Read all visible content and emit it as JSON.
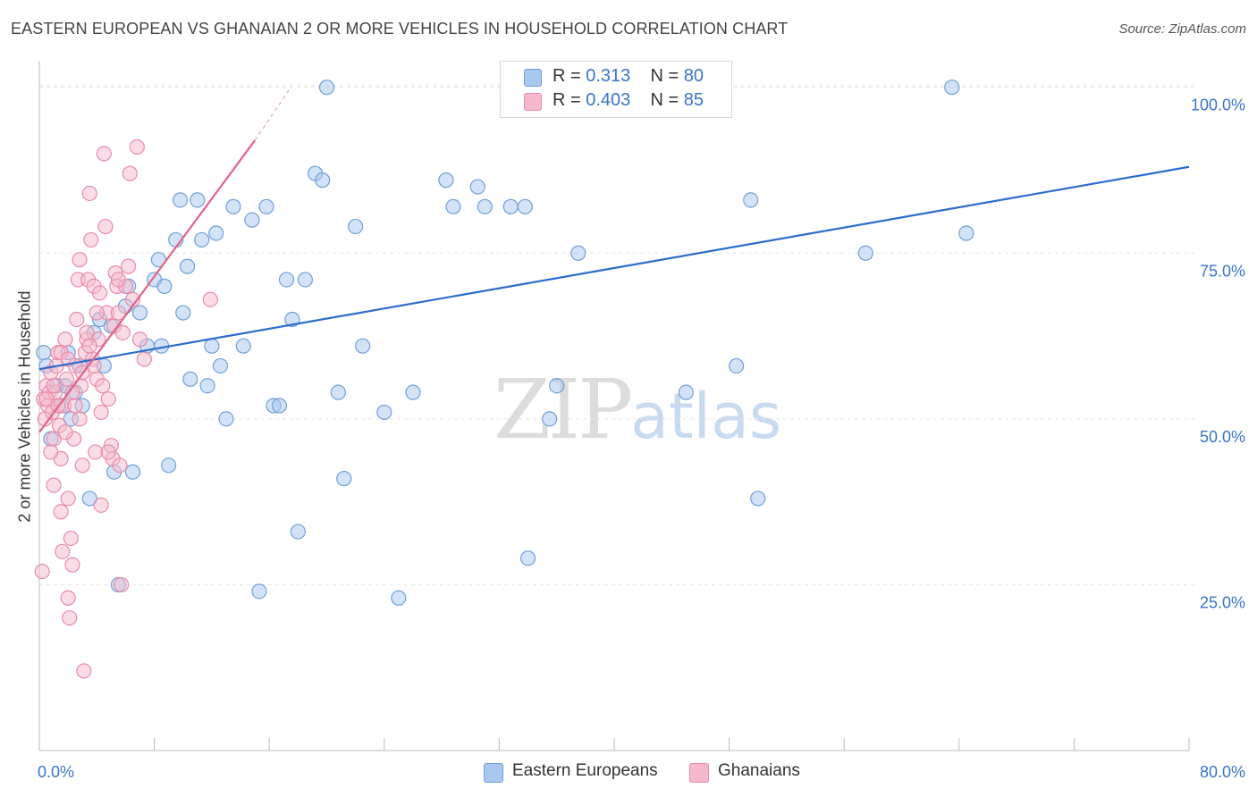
{
  "title": "EASTERN EUROPEAN VS GHANAIAN 2 OR MORE VEHICLES IN HOUSEHOLD CORRELATION CHART",
  "source": "Source: ZipAtlas.com",
  "watermark": {
    "zip": "ZIP",
    "atlas": "atlas"
  },
  "legend_top": [
    {
      "r_label": "R =",
      "r_value": "0.313",
      "n_label": "N =",
      "n_value": "80",
      "color": "#a8c8f0"
    },
    {
      "r_label": "R =",
      "r_value": "0.403",
      "n_label": "N =",
      "n_value": "85",
      "color": "#f6b9cc"
    }
  ],
  "legend_bottom": [
    {
      "label": "Eastern Europeans",
      "color": "#a8c8f0"
    },
    {
      "label": "Ghanaians",
      "color": "#f6b9cc"
    }
  ],
  "chart_data": {
    "type": "scatter",
    "title": "EASTERN EUROPEAN VS GHANAIAN 2 OR MORE VEHICLES IN HOUSEHOLD CORRELATION CHART",
    "xlabel": "",
    "ylabel": "2 or more Vehicles in Household",
    "xlim": [
      0,
      80
    ],
    "ylim": [
      0,
      104
    ],
    "x_tick_labels": [
      "0.0%",
      "80.0%"
    ],
    "y_ticks": [
      25,
      50,
      75,
      100
    ],
    "y_tick_labels": [
      "25.0%",
      "50.0%",
      "75.0%",
      "100.0%"
    ],
    "grid": true,
    "legend_position": "top-center",
    "series": [
      {
        "name": "Eastern Europeans",
        "color": "#a8c8f0",
        "stroke": "#6f9fd8",
        "trend_color": "#2a6ccc",
        "trend": {
          "x": [
            0,
            80
          ],
          "y": [
            57.5,
            88.0
          ]
        },
        "points": [
          [
            0.3,
            60
          ],
          [
            0.5,
            58
          ],
          [
            0.8,
            47
          ],
          [
            1.2,
            55
          ],
          [
            1.5,
            52
          ],
          [
            1.8,
            55
          ],
          [
            2.2,
            50
          ],
          [
            2.5,
            54
          ],
          [
            2.8,
            58
          ],
          [
            3.0,
            52
          ],
          [
            3.8,
            63
          ],
          [
            4.2,
            65
          ],
          [
            4.5,
            58
          ],
          [
            5.2,
            42
          ],
          [
            5.5,
            25
          ],
          [
            6.0,
            67
          ],
          [
            6.2,
            70
          ],
          [
            6.5,
            42
          ],
          [
            7.0,
            66
          ],
          [
            7.5,
            61
          ],
          [
            8.0,
            71
          ],
          [
            8.3,
            74
          ],
          [
            8.7,
            70
          ],
          [
            9.0,
            43
          ],
          [
            9.5,
            77
          ],
          [
            9.8,
            83
          ],
          [
            10.0,
            66
          ],
          [
            10.3,
            73
          ],
          [
            10.5,
            56
          ],
          [
            11.0,
            83
          ],
          [
            11.3,
            77
          ],
          [
            11.7,
            55
          ],
          [
            12.0,
            61
          ],
          [
            12.3,
            78
          ],
          [
            12.6,
            58
          ],
          [
            13.0,
            50
          ],
          [
            13.5,
            82
          ],
          [
            14.2,
            61
          ],
          [
            14.8,
            80
          ],
          [
            15.3,
            24
          ],
          [
            15.8,
            82
          ],
          [
            16.3,
            52
          ],
          [
            16.7,
            52
          ],
          [
            17.2,
            71
          ],
          [
            17.6,
            65
          ],
          [
            18.0,
            33
          ],
          [
            18.5,
            71
          ],
          [
            19.2,
            87
          ],
          [
            19.7,
            86
          ],
          [
            20.0,
            100
          ],
          [
            20.8,
            54
          ],
          [
            21.2,
            41
          ],
          [
            22.0,
            79
          ],
          [
            22.5,
            61
          ],
          [
            24.0,
            51
          ],
          [
            25.0,
            23
          ],
          [
            26.0,
            54
          ],
          [
            28.3,
            86
          ],
          [
            28.8,
            82
          ],
          [
            30.5,
            85
          ],
          [
            31.0,
            82
          ],
          [
            32.8,
            82
          ],
          [
            33.8,
            82
          ],
          [
            34.0,
            29
          ],
          [
            35.0,
            100
          ],
          [
            35.5,
            50
          ],
          [
            36.0,
            55
          ],
          [
            37.5,
            75
          ],
          [
            39.0,
            100
          ],
          [
            45.0,
            54
          ],
          [
            48.5,
            58
          ],
          [
            49.5,
            83
          ],
          [
            50.0,
            38
          ],
          [
            57.5,
            75
          ],
          [
            63.5,
            100
          ],
          [
            64.5,
            78
          ],
          [
            3.5,
            38
          ],
          [
            8.5,
            61
          ],
          [
            5.0,
            64
          ],
          [
            2.0,
            60
          ]
        ]
      },
      {
        "name": "Ghanaians",
        "color": "#f6b9cc",
        "stroke": "#e98aaa",
        "trend_color": "#e0648c",
        "trend": {
          "x": [
            0,
            15.0
          ],
          "y": [
            48.0,
            92.0
          ]
        },
        "trend_dashed": {
          "x": [
            15.0,
            17.5
          ],
          "y": [
            92.0,
            100.0
          ]
        },
        "points": [
          [
            0.2,
            27
          ],
          [
            0.3,
            53
          ],
          [
            0.4,
            50
          ],
          [
            0.5,
            55
          ],
          [
            0.6,
            52
          ],
          [
            0.7,
            54
          ],
          [
            0.8,
            57
          ],
          [
            0.9,
            51
          ],
          [
            1.0,
            47
          ],
          [
            1.0,
            40
          ],
          [
            1.1,
            54
          ],
          [
            1.2,
            58
          ],
          [
            1.3,
            60
          ],
          [
            1.4,
            49
          ],
          [
            1.5,
            44
          ],
          [
            1.5,
            36
          ],
          [
            1.6,
            30
          ],
          [
            1.7,
            52
          ],
          [
            1.8,
            62
          ],
          [
            1.9,
            56
          ],
          [
            2.0,
            38
          ],
          [
            2.0,
            23
          ],
          [
            2.1,
            20
          ],
          [
            2.2,
            32
          ],
          [
            2.3,
            28
          ],
          [
            2.4,
            47
          ],
          [
            2.5,
            58
          ],
          [
            2.6,
            65
          ],
          [
            2.7,
            71
          ],
          [
            2.8,
            74
          ],
          [
            2.9,
            55
          ],
          [
            3.0,
            43
          ],
          [
            3.1,
            12
          ],
          [
            3.2,
            60
          ],
          [
            3.3,
            62
          ],
          [
            3.4,
            71
          ],
          [
            3.5,
            84
          ],
          [
            3.6,
            77
          ],
          [
            3.7,
            59
          ],
          [
            3.8,
            70
          ],
          [
            3.9,
            45
          ],
          [
            4.0,
            56
          ],
          [
            4.1,
            62
          ],
          [
            4.2,
            69
          ],
          [
            4.3,
            37
          ],
          [
            4.4,
            55
          ],
          [
            4.5,
            90
          ],
          [
            4.6,
            79
          ],
          [
            4.7,
            66
          ],
          [
            4.8,
            53
          ],
          [
            5.0,
            46
          ],
          [
            5.1,
            44
          ],
          [
            5.2,
            64
          ],
          [
            5.3,
            72
          ],
          [
            5.4,
            70
          ],
          [
            5.5,
            66
          ],
          [
            5.6,
            43
          ],
          [
            5.7,
            25
          ],
          [
            5.8,
            63
          ],
          [
            6.0,
            70
          ],
          [
            6.2,
            73
          ],
          [
            6.3,
            87
          ],
          [
            6.5,
            68
          ],
          [
            6.8,
            91
          ],
          [
            7.0,
            62
          ],
          [
            7.3,
            59
          ],
          [
            11.9,
            68
          ],
          [
            0.5,
            53
          ],
          [
            1.0,
            55
          ],
          [
            1.5,
            60
          ],
          [
            2.0,
            59
          ],
          [
            2.5,
            52
          ],
          [
            3.0,
            57
          ],
          [
            3.5,
            61
          ],
          [
            4.0,
            66
          ],
          [
            0.8,
            45
          ],
          [
            1.3,
            52
          ],
          [
            1.8,
            48
          ],
          [
            2.3,
            54
          ],
          [
            2.8,
            50
          ],
          [
            3.3,
            63
          ],
          [
            3.8,
            58
          ],
          [
            4.3,
            51
          ],
          [
            4.8,
            45
          ],
          [
            5.5,
            71
          ]
        ]
      }
    ]
  }
}
